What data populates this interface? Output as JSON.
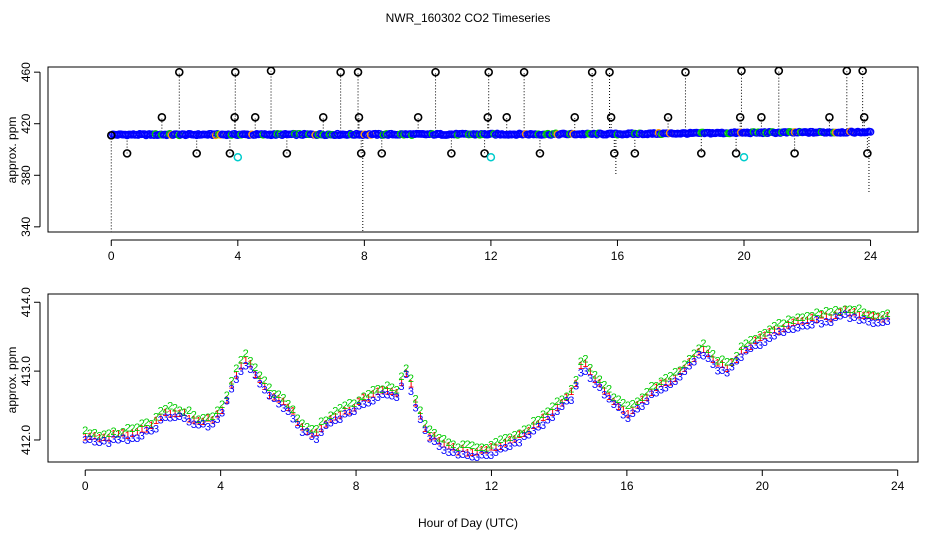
{
  "title": "NWR_160302  CO2 Timeseries",
  "xlabel": "Hour of Day (UTC)",
  "colors": {
    "black": "#000000",
    "blue": "#0000ff",
    "red": "#ff0000",
    "green": "#00cc00",
    "cyan": "#00cccc",
    "orange": "#ff9900"
  },
  "chart_data": [
    {
      "type": "scatter",
      "panel": "top",
      "ylabel": "approx. ppm",
      "xlim": [
        -2,
        25.5
      ],
      "ylim": [
        336,
        464
      ],
      "xticks": [
        0,
        4,
        8,
        12,
        16,
        20,
        24
      ],
      "yticks": [
        340,
        380,
        420,
        460
      ],
      "baseline": [
        [
          0,
          411.5
        ],
        [
          4,
          411.6
        ],
        [
          8,
          411.7
        ],
        [
          12,
          411.8
        ],
        [
          16,
          412.0
        ],
        [
          20,
          413.0
        ],
        [
          24,
          413.5
        ]
      ],
      "series": [
        {
          "marker": "circle",
          "x": [
            0.0,
            0.5,
            1.6,
            2.15,
            2.7,
            3.75,
            3.9,
            3.92,
            4.55,
            5.05,
            5.55,
            6.7,
            7.25,
            7.8,
            7.83,
            7.9,
            8.55,
            9.7,
            10.25,
            10.75,
            11.8,
            11.9,
            11.93,
            12.5,
            13.05,
            13.55,
            14.65,
            15.2,
            15.75,
            15.8,
            15.9,
            16.55,
            17.6,
            18.15,
            18.65,
            19.75,
            19.88,
            19.92,
            20.55,
            21.1,
            21.6,
            22.7,
            23.25,
            23.75,
            23.8,
            23.9
          ],
          "y": [
            411,
            397,
            425,
            460,
            397,
            397,
            425,
            460,
            425,
            461,
            397,
            425,
            460,
            460,
            425,
            397,
            397,
            425,
            460,
            397,
            397,
            425,
            460,
            425,
            460,
            397,
            425,
            460,
            460,
            425,
            397,
            397,
            425,
            460,
            397,
            397,
            425,
            461,
            425,
            461,
            397,
            425,
            461,
            461,
            425,
            397
          ]
        },
        {
          "marker": "circle-cyan",
          "x": [
            4.0,
            12.0,
            20.0
          ],
          "y": [
            394,
            394,
            394
          ]
        }
      ],
      "drops": [
        {
          "x": 0.0,
          "from": 411,
          "to": 336
        },
        {
          "x": 7.95,
          "from": 412,
          "to": 336
        },
        {
          "x": 15.95,
          "from": 412,
          "to": 380
        },
        {
          "x": 23.95,
          "from": 412,
          "to": 366
        }
      ]
    },
    {
      "type": "scatter",
      "panel": "bottom",
      "ylabel": "approx. ppm",
      "xlim": [
        -1.1,
        24.6
      ],
      "ylim": [
        411.68,
        414.12
      ],
      "xticks": [
        0,
        4,
        8,
        12,
        16,
        20,
        24
      ],
      "yticks": [
        412.0,
        413.0,
        414.0
      ],
      "marker_labels": [
        "1",
        "2",
        "3"
      ],
      "profile": [
        [
          0.0,
          412.07
        ],
        [
          0.5,
          412.03
        ],
        [
          1.0,
          412.07
        ],
        [
          1.5,
          412.12
        ],
        [
          2.0,
          412.22
        ],
        [
          2.4,
          412.42
        ],
        [
          2.9,
          412.38
        ],
        [
          3.3,
          412.28
        ],
        [
          3.8,
          412.3
        ],
        [
          4.1,
          412.5
        ],
        [
          4.4,
          412.9
        ],
        [
          4.7,
          413.2
        ],
        [
          5.0,
          413.0
        ],
        [
          5.4,
          412.7
        ],
        [
          6.0,
          412.5
        ],
        [
          6.4,
          412.2
        ],
        [
          6.8,
          412.1
        ],
        [
          7.3,
          412.35
        ],
        [
          7.8,
          412.45
        ],
        [
          8.3,
          412.62
        ],
        [
          8.8,
          412.72
        ],
        [
          9.2,
          412.68
        ],
        [
          9.5,
          413.02
        ],
        [
          9.8,
          412.5
        ],
        [
          10.1,
          412.1
        ],
        [
          10.5,
          411.97
        ],
        [
          11.0,
          411.85
        ],
        [
          11.5,
          411.85
        ],
        [
          12.0,
          411.87
        ],
        [
          12.5,
          412.0
        ],
        [
          13.0,
          412.1
        ],
        [
          13.5,
          412.3
        ],
        [
          14.0,
          412.5
        ],
        [
          14.4,
          412.7
        ],
        [
          14.7,
          413.15
        ],
        [
          15.2,
          412.8
        ],
        [
          15.6,
          412.6
        ],
        [
          16.0,
          412.4
        ],
        [
          16.3,
          412.5
        ],
        [
          16.8,
          412.75
        ],
        [
          17.3,
          412.85
        ],
        [
          17.8,
          413.1
        ],
        [
          18.2,
          413.35
        ],
        [
          18.7,
          413.1
        ],
        [
          19.0,
          413.05
        ],
        [
          19.5,
          413.35
        ],
        [
          19.9,
          413.45
        ],
        [
          20.4,
          413.6
        ],
        [
          21.0,
          413.72
        ],
        [
          21.5,
          413.78
        ],
        [
          22.0,
          413.8
        ],
        [
          22.5,
          413.88
        ],
        [
          23.0,
          413.82
        ],
        [
          23.5,
          413.75
        ],
        [
          23.7,
          413.78
        ]
      ]
    }
  ]
}
